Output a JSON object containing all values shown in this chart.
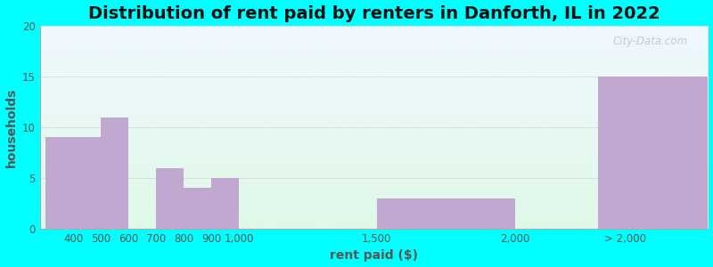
{
  "title": "Distribution of rent paid by renters in Danforth, IL in 2022",
  "xlabel": "rent paid ($)",
  "ylabel": "households",
  "bar_lefts": [
    300,
    500,
    600,
    700,
    800,
    900,
    1500,
    2000,
    2300
  ],
  "bar_rights": [
    500,
    600,
    700,
    800,
    900,
    1000,
    2000,
    2300,
    2700
  ],
  "bar_values": [
    9,
    11,
    0,
    6,
    4,
    5,
    3,
    0,
    15
  ],
  "xtick_positions": [
    400,
    500,
    600,
    700,
    800,
    900,
    1000,
    1500,
    2000,
    2400
  ],
  "xtick_labels": [
    "400",
    "500",
    "600",
    "700",
    "800",
    "900",
    "1,000",
    "1,500",
    "2,000",
    "> 2,000"
  ],
  "bar_color": "#c0a8d0",
  "bg_color_top": "#f0f8ff",
  "bg_color_bottom": "#e0f8e8",
  "outer_bg": "#00ffff",
  "ylim": [
    0,
    20
  ],
  "yticks": [
    0,
    5,
    10,
    15,
    20
  ],
  "grid_color": "#dddddd",
  "title_fontsize": 14,
  "axis_label_fontsize": 10,
  "tick_fontsize": 8.5,
  "watermark": "City-Data.com"
}
